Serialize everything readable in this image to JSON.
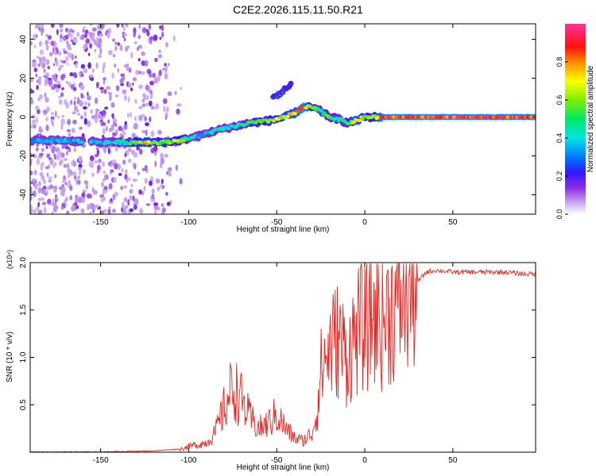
{
  "title": "C2E2.2026.115.11.50.R21",
  "chart_data": [
    {
      "type": "heatmap",
      "xlabel": "Height of straight line (km)",
      "ylabel": "Frequency (Hz)",
      "xlim": [
        -190,
        97
      ],
      "ylim": [
        -50,
        48
      ],
      "xticks": [
        -150,
        -100,
        -50,
        0,
        50
      ],
      "yticks": [
        -40,
        -20,
        0,
        20,
        40
      ],
      "colorbar": {
        "label": "Normalized spectral amplitude",
        "range": [
          0.0,
          1.0
        ],
        "ticks": [
          0.0,
          0.2,
          0.4,
          0.6,
          0.8
        ]
      },
      "ridge": {
        "x": [
          -190,
          -170,
          -150,
          -135,
          -125,
          -115,
          -105,
          -95,
          -85,
          -75,
          -65,
          -55,
          -45,
          -40,
          -35,
          -30,
          -25,
          -20,
          -15,
          -10,
          -5,
          0,
          5,
          10,
          30,
          60,
          97
        ],
        "freq": [
          -12,
          -12,
          -13,
          -13,
          -13,
          -13,
          -12,
          -10,
          -7,
          -5,
          -3,
          -2,
          0,
          2,
          5,
          5,
          3,
          0,
          -1,
          -3,
          -2,
          0,
          0,
          0,
          0,
          0,
          0
        ],
        "amplitude": [
          0.35,
          0.35,
          0.4,
          0.45,
          0.75,
          0.6,
          0.65,
          0.35,
          0.45,
          0.45,
          0.55,
          0.6,
          0.7,
          0.78,
          0.95,
          0.6,
          0.5,
          0.55,
          0.45,
          0.5,
          0.85,
          0.55,
          0.65,
          0.9,
          0.92,
          0.93,
          0.9
        ]
      },
      "branch": {
        "x": [
          -52,
          -48,
          -45,
          -42
        ],
        "freq": [
          10,
          12,
          15,
          17
        ],
        "amplitude": [
          0.3,
          0.35,
          0.3,
          0.2
        ]
      },
      "noise_region_x": [
        -190,
        -110
      ]
    },
    {
      "type": "line",
      "xlabel": "Height of straight line (km)",
      "ylabel": "SNR (10 * v/v)",
      "y_scale_label": "(x10⁴)",
      "xlim": [
        -190,
        97
      ],
      "ylim": [
        0,
        2.0
      ],
      "xticks": [
        -150,
        -100,
        -50,
        0,
        50
      ],
      "yticks": [
        0.5,
        1.0,
        1.5,
        2.0
      ],
      "series": [
        {
          "name": "SNR",
          "color": "#e8231f",
          "x": [
            -190,
            -150,
            -120,
            -105,
            -100,
            -95,
            -90,
            -85,
            -80,
            -75,
            -70,
            -65,
            -60,
            -55,
            -50,
            -45,
            -40,
            -35,
            -30,
            -27,
            -25,
            -20,
            -15,
            -10,
            -5,
            0,
            5,
            10,
            15,
            20,
            25,
            30,
            35,
            40,
            50,
            60,
            70,
            80,
            90,
            97
          ],
          "y": [
            0.0,
            0.0,
            0.01,
            0.03,
            0.06,
            0.08,
            0.1,
            0.2,
            0.45,
            0.7,
            0.55,
            0.35,
            0.25,
            0.3,
            0.4,
            0.25,
            0.15,
            0.12,
            0.2,
            0.45,
            0.85,
            1.1,
            1.2,
            1.0,
            1.25,
            1.35,
            1.45,
            1.4,
            1.5,
            1.6,
            1.7,
            1.8,
            1.9,
            1.92,
            1.9,
            1.9,
            1.9,
            1.9,
            1.88,
            1.88
          ]
        }
      ]
    }
  ]
}
